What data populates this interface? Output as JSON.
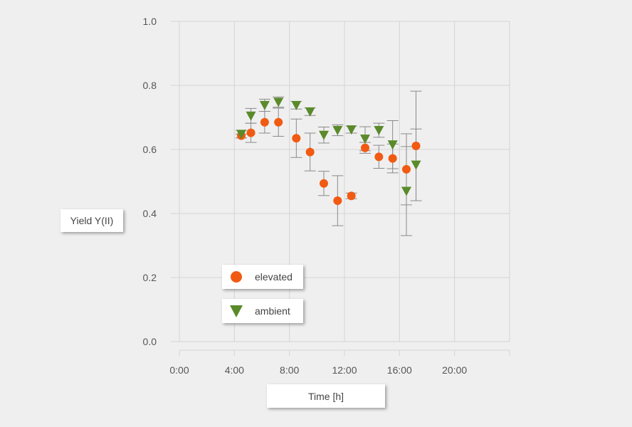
{
  "chart_data": {
    "type": "scatter",
    "title": "",
    "xlabel": "Time [h]",
    "ylabel": "Yield Y(II)",
    "xlim": [
      0,
      24
    ],
    "ylim": [
      0.0,
      1.0
    ],
    "x_ticks": [
      0,
      4,
      8,
      12,
      16,
      20
    ],
    "x_tick_labels": [
      "0:00",
      "4:00",
      "8:00",
      "12:00",
      "16:00",
      "20:00"
    ],
    "y_ticks": [
      0.0,
      0.2,
      0.4,
      0.6,
      0.8,
      1.0
    ],
    "y_tick_labels": [
      "0.0",
      "0.2",
      "0.4",
      "0.6",
      "0.8",
      "1.0"
    ],
    "grid": true,
    "legend_position": "lower-left inside",
    "series": [
      {
        "name": "elevated",
        "marker": "circle",
        "color": "#f15a13",
        "x": [
          4.5,
          5.2,
          6.2,
          7.2,
          8.5,
          9.5,
          10.5,
          11.5,
          12.5,
          13.5,
          14.5,
          15.5,
          16.5,
          17.2
        ],
        "y": [
          0.643,
          0.652,
          0.685,
          0.685,
          0.635,
          0.592,
          0.494,
          0.44,
          0.455,
          0.605,
          0.577,
          0.572,
          0.538,
          0.611
        ],
        "err_low": [
          0.636,
          0.622,
          0.651,
          0.641,
          0.575,
          0.533,
          0.456,
          0.362,
          0.446,
          0.588,
          0.541,
          0.527,
          0.427,
          0.44
        ],
        "err_high": [
          0.648,
          0.682,
          0.719,
          0.729,
          0.695,
          0.651,
          0.532,
          0.518,
          0.464,
          0.622,
          0.613,
          0.617,
          0.649,
          0.782
        ]
      },
      {
        "name": "ambient",
        "marker": "triangle-down",
        "color": "#5a8a2a",
        "x": [
          4.5,
          5.2,
          6.2,
          7.2,
          8.5,
          9.5,
          10.5,
          11.5,
          12.5,
          13.5,
          14.5,
          15.5,
          16.5,
          17.2
        ],
        "y": [
          0.648,
          0.705,
          0.738,
          0.748,
          0.738,
          0.718,
          0.645,
          0.66,
          0.662,
          0.633,
          0.66,
          0.615,
          0.47,
          0.552
        ],
        "err_low": [
          0.636,
          0.682,
          0.719,
          0.732,
          0.726,
          0.706,
          0.62,
          0.643,
          0.651,
          0.596,
          0.638,
          0.54,
          0.331,
          0.44
        ],
        "err_high": [
          0.66,
          0.728,
          0.757,
          0.764,
          0.75,
          0.73,
          0.67,
          0.677,
          0.673,
          0.671,
          0.682,
          0.69,
          0.609,
          0.664
        ]
      }
    ]
  },
  "colors": {
    "background": "#efefef",
    "grid": "#d4d4d4",
    "errorbar": "#8a8a8a"
  }
}
